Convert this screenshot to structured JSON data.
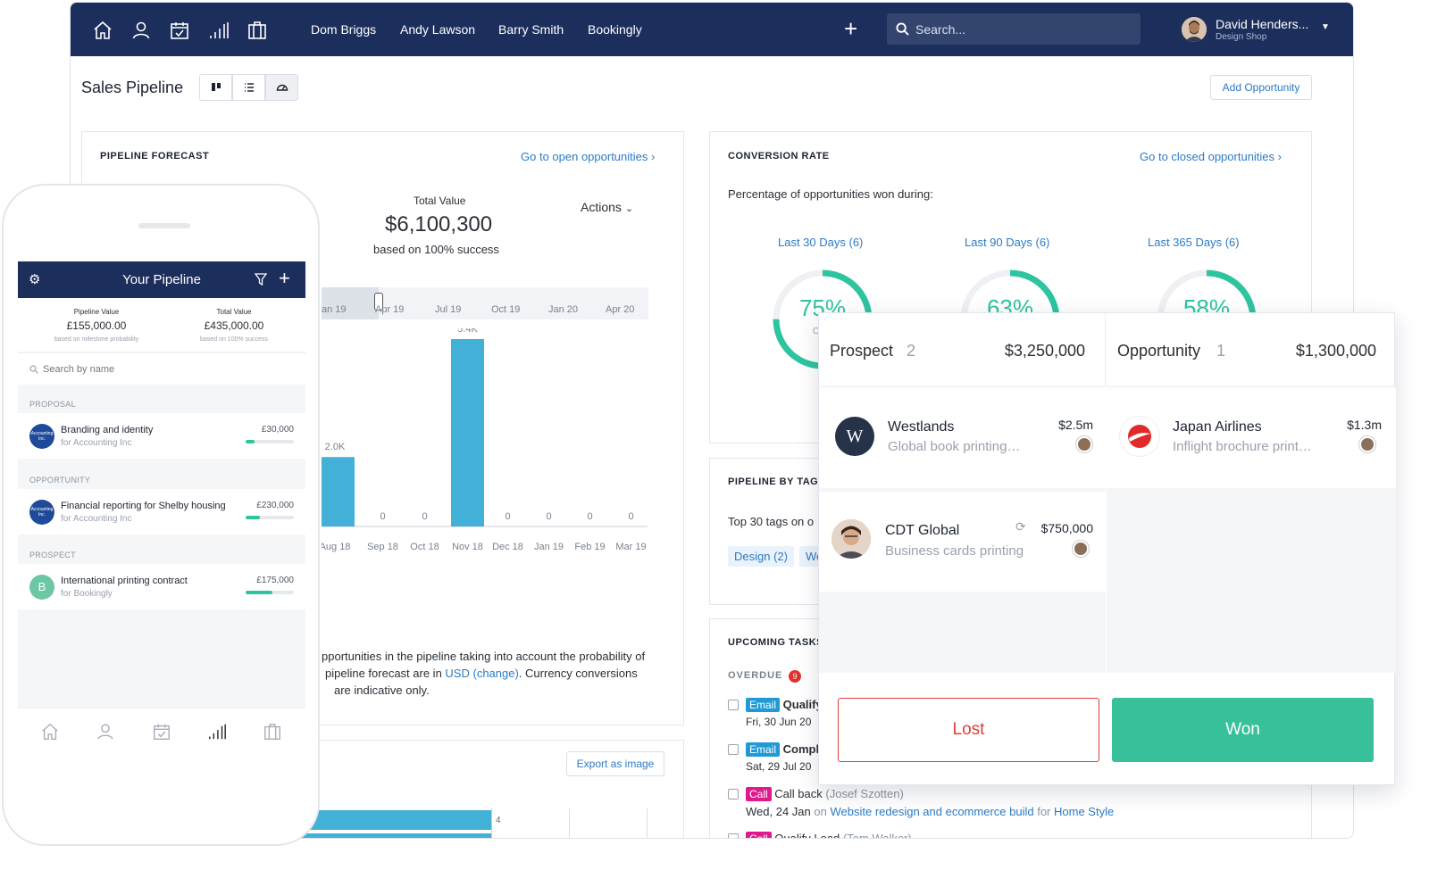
{
  "topbar": {
    "nav_links": [
      "Dom Briggs",
      "Andy Lawson",
      "Barry Smith",
      "Bookingly"
    ],
    "search_placeholder": "Search...",
    "user_name": "David Henders...",
    "user_company": "Design Shop",
    "plus_label": "+"
  },
  "page": {
    "title": "Sales Pipeline",
    "add_opportunity": "Add Opportunity"
  },
  "forecast": {
    "title": "PIPELINE FORECAST",
    "link": "Go to open opportunities ›",
    "total_label": "Total Value",
    "total_value": "$6,100,300",
    "total_sub": "based on 100% success",
    "actions": "Actions",
    "note_line1": "pportunities in the pipeline taking into account the probability of",
    "note_line2_a": "pipeline forecast are in ",
    "note_currency": "USD",
    "note_change": "(change)",
    "note_line2_b": ". Currency conversions",
    "note_line3": "are indicative only.",
    "export_label": "Export as image",
    "bottom_bar_value": "4"
  },
  "chart_data": {
    "type": "bar",
    "categories": [
      "Aug 18",
      "Sep 18",
      "Oct 18",
      "Nov 18",
      "Dec 18",
      "Jan 19",
      "Feb 19",
      "Mar 19"
    ],
    "values": [
      2000,
      0,
      0,
      5400,
      0,
      0,
      0,
      0
    ],
    "value_labels": [
      "2.0K",
      "0",
      "0",
      "5.4K",
      "0",
      "0",
      "0",
      "0"
    ],
    "range_ticks": [
      "an 19",
      "Apr 19",
      "Jul 19",
      "Oct 19",
      "Jan 20",
      "Apr 20"
    ],
    "ylim": [
      0,
      5400
    ]
  },
  "conversion": {
    "title": "CONVERSION RATE",
    "link": "Go to closed opportunities ›",
    "subtitle": "Percentage of opportunities won during:",
    "rings": [
      {
        "label": "Last 30 Days (6)",
        "pct": 75,
        "pct_label": "75%",
        "sub": "Con"
      },
      {
        "label": "Last 90 Days (6)",
        "pct": 63,
        "pct_label": "63%"
      },
      {
        "label": "Last 365 Days (6)",
        "pct": 58,
        "pct_label": "58%"
      }
    ],
    "ring_color": "#2ec4a0"
  },
  "tags": {
    "title": "PIPELINE BY TAG",
    "subtitle": "Top 30 tags on o",
    "items": [
      "Design (2)",
      "We"
    ]
  },
  "tasks": {
    "title": "UPCOMING TASKS",
    "overdue_label": "OVERDUE",
    "overdue_count": "9",
    "items": [
      {
        "tag": "Email",
        "tag_color": "#1f9ad6",
        "title": "Qualify",
        "due": "Fri, 30 Jun 20"
      },
      {
        "tag": "Email",
        "tag_color": "#1f9ad6",
        "title": "Compl",
        "due": "Sat, 29 Jul 20"
      },
      {
        "tag": "Call",
        "tag_color": "#e0198c",
        "title": "Call back",
        "person": "(Josef Szotten)",
        "due": "Wed, 24 Jan",
        "on": "on",
        "link": "Website redesign and ecommerce build",
        "for": "for",
        "client": "Home Style"
      },
      {
        "tag": "Call",
        "tag_color": "#e0198c",
        "title": "Qualify Lead",
        "person": "(Tom Walker)"
      }
    ]
  },
  "mobile": {
    "title": "Your Pipeline",
    "pipeline_value_label": "Pipeline Value",
    "pipeline_value": "£155,000.00",
    "pipeline_value_sub": "based on milestone probability",
    "total_value_label": "Total Value",
    "total_value": "£435,000.00",
    "total_value_sub": "based on 100% success",
    "search_placeholder": "Search by name",
    "sections": [
      {
        "label": "PROPOSAL",
        "name": "Branding and identity",
        "company": "for Accounting Inc",
        "value": "£30,000",
        "progress": 0.18,
        "avatar": "Accounting Inc."
      },
      {
        "label": "OPPORTUNITY",
        "name": "Financial reporting for Shelby housing",
        "company": "for Accounting Inc",
        "value": "£230,000",
        "progress": 0.3,
        "avatar": "Accounting Inc."
      },
      {
        "label": "PROSPECT",
        "name": "International printing contract",
        "company": "for Bookingly",
        "value": "£175,000",
        "progress": 0.55,
        "avatar": "B"
      }
    ]
  },
  "board": {
    "columns": [
      {
        "name": "Prospect",
        "count": "2",
        "total": "$3,250,000"
      },
      {
        "name": "Opportunity",
        "count": "1",
        "total": "$1,300,000"
      }
    ],
    "cards": [
      {
        "name": "Westlands",
        "desc": "Global book printing…",
        "value": "$2.5m",
        "logo": "W"
      },
      {
        "name": "Japan Airlines",
        "desc": "Inflight brochure print…",
        "value": "$1.3m"
      },
      {
        "name": "CDT Global",
        "desc": "Business cards printing",
        "value": "$750,000"
      }
    ],
    "lost_label": "Lost",
    "won_label": "Won"
  }
}
